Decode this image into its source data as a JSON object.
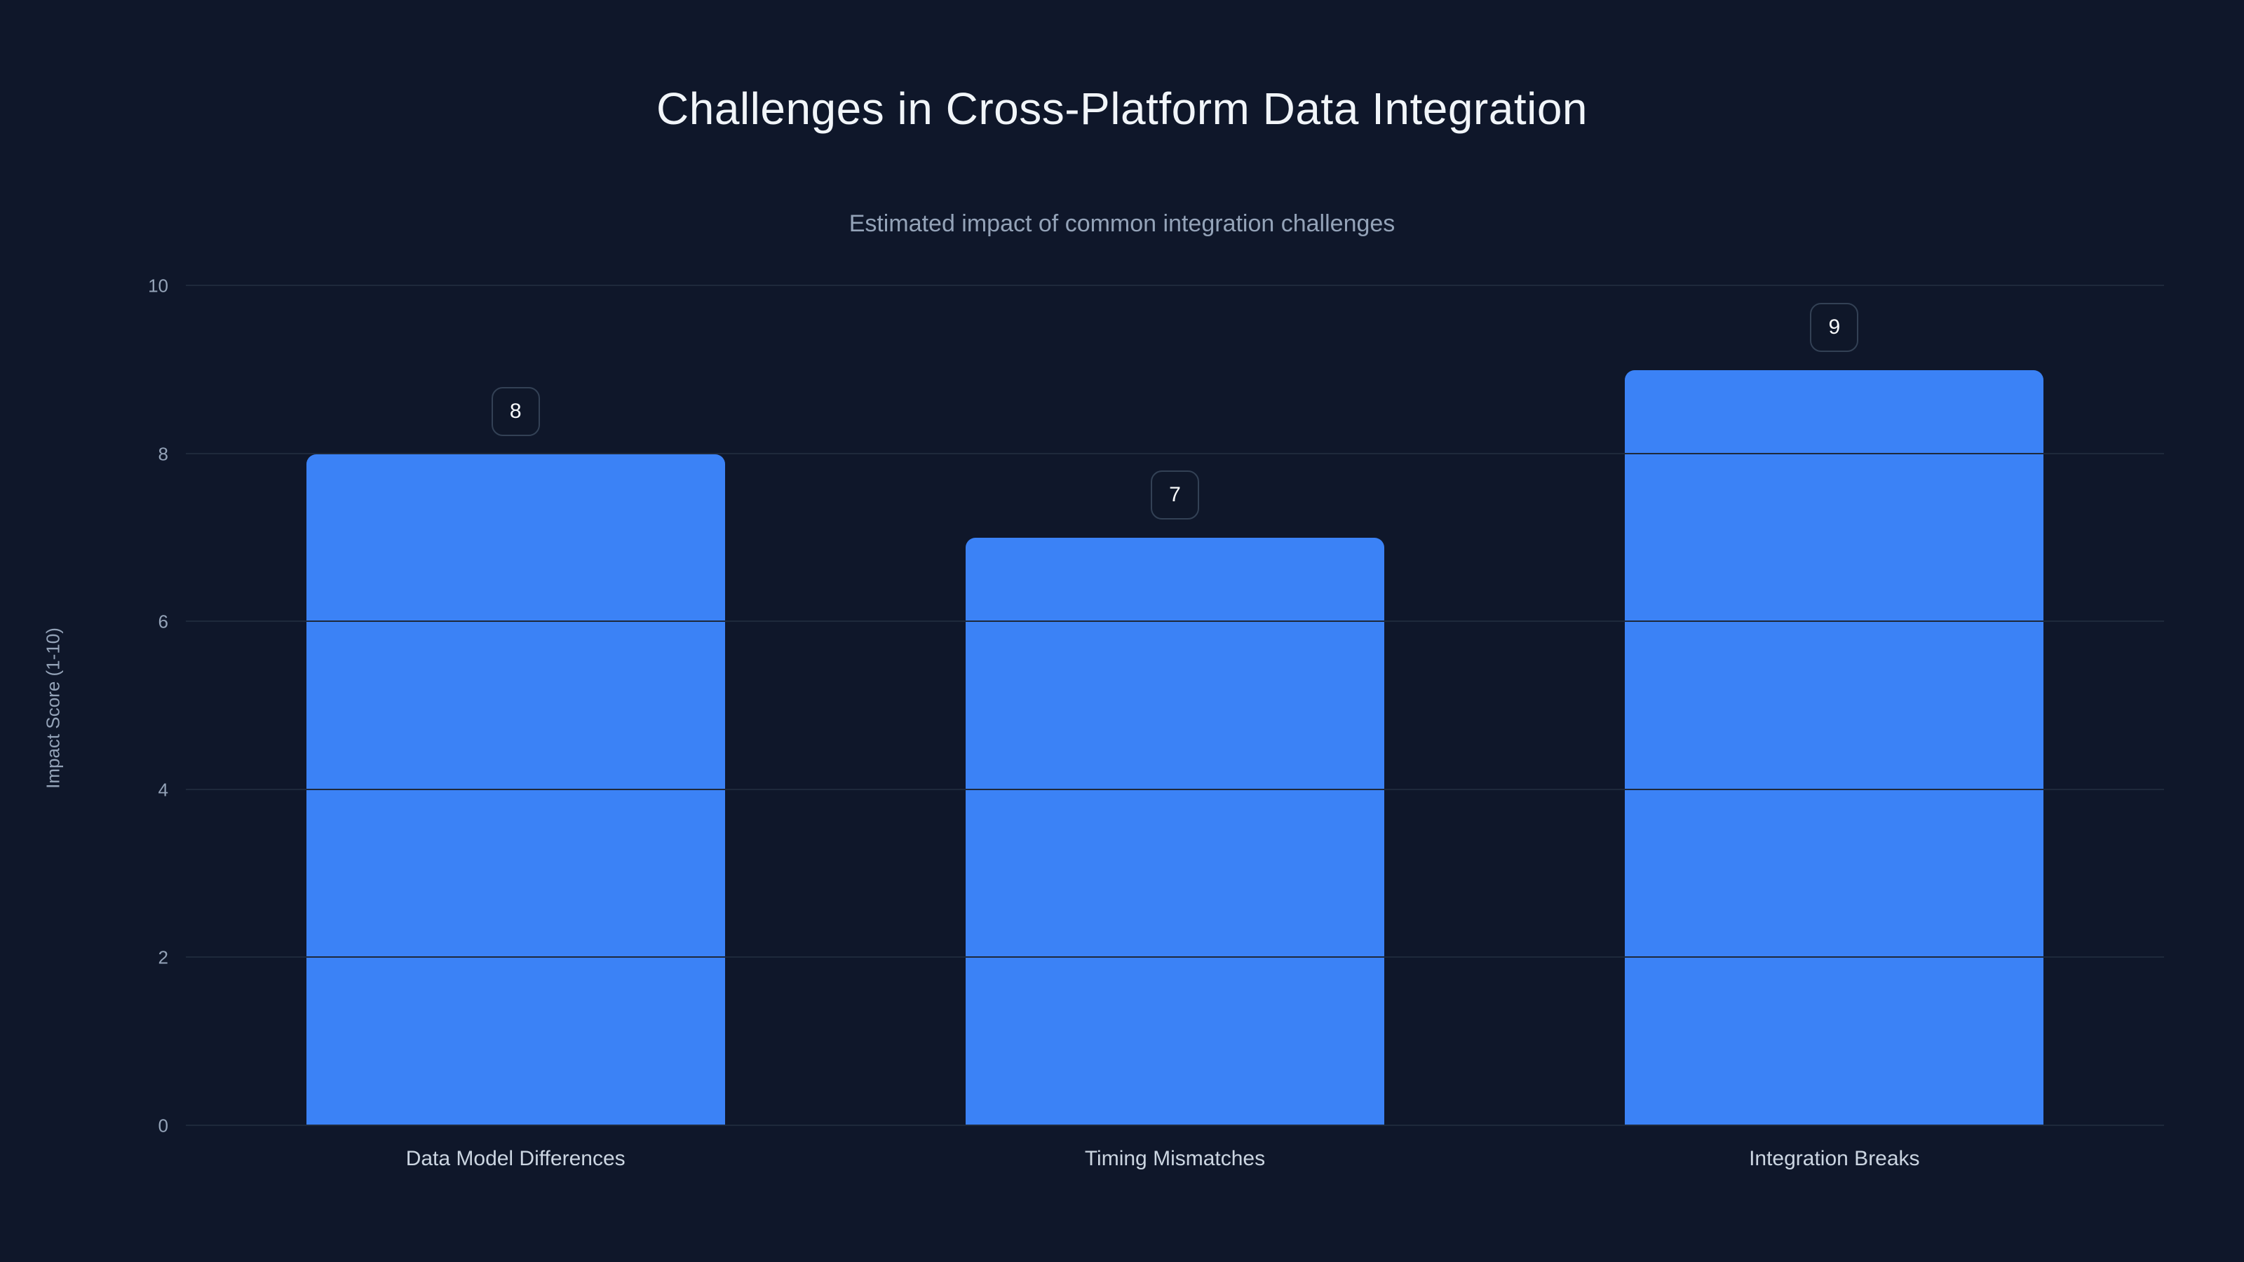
{
  "chart_data": {
    "type": "bar",
    "title": "Challenges in Cross-Platform Data Integration",
    "subtitle": "Estimated impact of common integration challenges",
    "categories": [
      "Data Model Differences",
      "Timing Mismatches",
      "Integration Breaks"
    ],
    "values": [
      8,
      7,
      9
    ],
    "value_labels": [
      "8",
      "7",
      "9"
    ],
    "xlabel": "",
    "ylabel": "Impact Score (1-10)",
    "ylim": [
      0,
      10
    ],
    "yticks": [
      0,
      2,
      4,
      6,
      8,
      10
    ],
    "grid": true,
    "legend_position": "none",
    "bar_color": "#3b82f6",
    "background_color": "#0f172a",
    "gridline_color": "#1e293b",
    "title_color": "#f1f5f9",
    "subtitle_color": "#94a3b8",
    "tick_color": "#94a3b8",
    "category_label_color": "#cbd5e1"
  }
}
